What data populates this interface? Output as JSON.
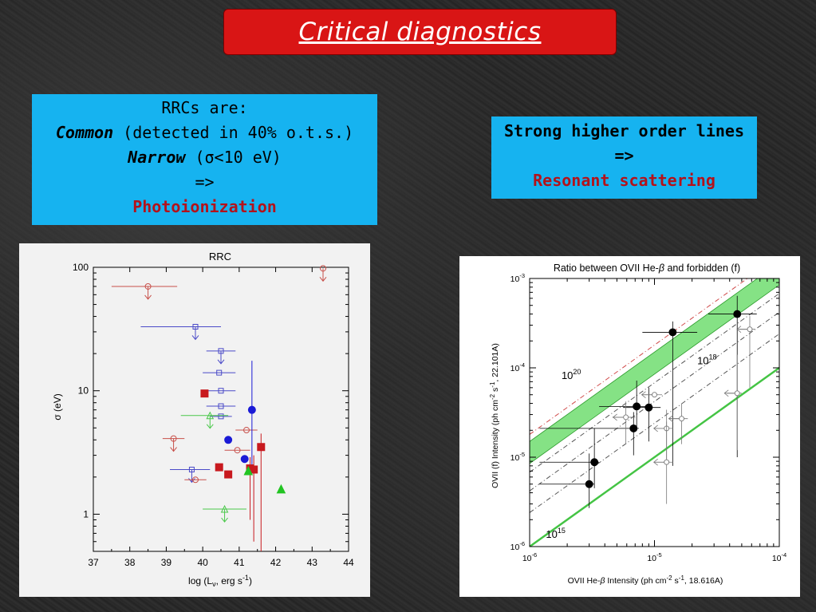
{
  "title": "Critical diagnostics",
  "rrc_box": {
    "line1": "RRCs are:",
    "line2_em": "Common",
    "line2_rest": " (detected in 40% o.t.s.)",
    "line3_em": "Narrow",
    "line3_rest": " (σ<10 eV)",
    "line4": "=>",
    "line5": "Photoionization"
  },
  "res_box": {
    "line1": "Strong higher order lines",
    "line2": "=>",
    "line3": "Resonant scattering"
  },
  "chart_data": [
    {
      "type": "scatter",
      "title": "RRC",
      "xlabel": "log (L",
      "xlabel_sub": "ν",
      "xlabel_tail": ", erg s",
      "xlabel_sup": "-1",
      "xlabel_end": ")",
      "ylabel": "σ (eV)",
      "xlim": [
        37,
        44
      ],
      "ylim": [
        0.5,
        100
      ],
      "ylog": true,
      "xticks": [
        "37",
        "38",
        "39",
        "40",
        "41",
        "42",
        "43",
        "44"
      ],
      "yticks": [
        {
          "v": 1,
          "label": "1"
        },
        {
          "v": 10,
          "label": "10"
        },
        {
          "v": 100,
          "label": "100"
        }
      ],
      "colors": {
        "red": "#c8191e",
        "blue": "#1a1ad6",
        "green": "#22c422",
        "redOpen": "#c8504a",
        "blueOpen": "#4a4ac8",
        "greenOpen": "#4ac84a"
      },
      "points": [
        {
          "x": 38.5,
          "y": 70,
          "xerr": [
            37.5,
            39.3
          ],
          "mk": "circle",
          "fill": false,
          "c": "redOpen",
          "ul": true
        },
        {
          "x": 43.3,
          "y": 98,
          "mk": "circle",
          "fill": false,
          "c": "redOpen",
          "ul": true
        },
        {
          "x": 39.8,
          "y": 33,
          "xerr": [
            38.3,
            40.5
          ],
          "mk": "square",
          "fill": false,
          "c": "blueOpen",
          "ul": true
        },
        {
          "x": 40.5,
          "y": 21,
          "xerr": [
            40.1,
            40.9
          ],
          "mk": "square",
          "fill": false,
          "c": "blueOpen",
          "ul": true
        },
        {
          "x": 40.45,
          "y": 14,
          "xerr": [
            40.0,
            40.9
          ],
          "mk": "square",
          "fill": false,
          "c": "blueOpen"
        },
        {
          "x": 40.5,
          "y": 10,
          "xerr": [
            40.1,
            40.9
          ],
          "mk": "square",
          "fill": false,
          "c": "blueOpen"
        },
        {
          "x": 40.5,
          "y": 7.5,
          "xerr": [
            40.1,
            40.9
          ],
          "mk": "square",
          "fill": false,
          "c": "blueOpen"
        },
        {
          "x": 40.5,
          "y": 6.2,
          "xerr": [
            40.2,
            40.8
          ],
          "mk": "square",
          "fill": false,
          "c": "blueOpen"
        },
        {
          "x": 39.7,
          "y": 2.3,
          "xerr": [
            39.1,
            40.2
          ],
          "mk": "square",
          "fill": false,
          "c": "blueOpen",
          "ul": true
        },
        {
          "x": 40.05,
          "y": 9.5,
          "mk": "square",
          "fill": true,
          "c": "red"
        },
        {
          "x": 40.2,
          "y": 6.3,
          "xerr": [
            39.4,
            40.7
          ],
          "mk": "triangle",
          "fill": false,
          "c": "greenOpen",
          "ul": true
        },
        {
          "x": 39.2,
          "y": 4.1,
          "xerr": [
            38.9,
            39.5
          ],
          "mk": "circle",
          "fill": false,
          "c": "redOpen",
          "ul": true
        },
        {
          "x": 39.8,
          "y": 1.9,
          "xerr": [
            39.5,
            40.1
          ],
          "mk": "circle",
          "fill": false,
          "c": "redOpen"
        },
        {
          "x": 41.2,
          "y": 4.8,
          "xerr": [
            40.9,
            41.5
          ],
          "mk": "circle",
          "fill": false,
          "c": "redOpen"
        },
        {
          "x": 40.95,
          "y": 3.3,
          "xerr": [
            40.6,
            41.3
          ],
          "mk": "circle",
          "fill": false,
          "c": "redOpen"
        },
        {
          "x": 40.7,
          "y": 4.0,
          "mk": "circle",
          "fill": true,
          "c": "blue"
        },
        {
          "x": 41.35,
          "y": 7.0,
          "yerr": [
            2.3,
            17.5
          ],
          "mk": "circle",
          "fill": true,
          "c": "blue"
        },
        {
          "x": 41.15,
          "y": 2.8,
          "mk": "circle",
          "fill": true,
          "c": "blue"
        },
        {
          "x": 40.45,
          "y": 2.4,
          "mk": "square",
          "fill": true,
          "c": "red"
        },
        {
          "x": 40.7,
          "y": 2.1,
          "mk": "square",
          "fill": true,
          "c": "red"
        },
        {
          "x": 41.3,
          "y": 2.35,
          "yerr": [
            0.9,
            2.9
          ],
          "mk": "square",
          "fill": true,
          "c": "red"
        },
        {
          "x": 41.4,
          "y": 2.3,
          "yerr": [
            0.6,
            3.0
          ],
          "mk": "square",
          "fill": true,
          "c": "red"
        },
        {
          "x": 41.6,
          "y": 3.5,
          "yerr": [
            0.5,
            4.5
          ],
          "mk": "square",
          "fill": true,
          "c": "red"
        },
        {
          "x": 41.25,
          "y": 2.25,
          "mk": "triangle",
          "fill": true,
          "c": "green"
        },
        {
          "x": 42.15,
          "y": 1.6,
          "mk": "triangle",
          "fill": true,
          "c": "green"
        },
        {
          "x": 40.6,
          "y": 1.1,
          "xerr": [
            40.0,
            41.2
          ],
          "mk": "triangle",
          "fill": false,
          "c": "greenOpen",
          "ul": true
        }
      ]
    },
    {
      "type": "scatter",
      "title_pre": "Ratio between OVII He-",
      "title_beta": "β",
      "title_post": " and forbidden (f)",
      "xlabel_pre": "OVII He-",
      "xlabel_beta": "β",
      "xlabel_mid": " Intensity (ph cm",
      "xlabel_sup1": "-2",
      "xlabel_s": " s",
      "xlabel_sup2": "-1",
      "xlabel_end": ", 18.616A)",
      "ylabel_pre": "OVII (f) Intensity (ph cm",
      "ylabel_sup1": "-2",
      "ylabel_s": " s",
      "ylabel_sup2": "-1",
      "ylabel_end": ", 22.101A)",
      "xlog": true,
      "ylog": true,
      "xlim": [
        1e-06,
        0.0001
      ],
      "ylim": [
        1e-06,
        0.001
      ],
      "xticks": [
        {
          "base": "10",
          "exp": "-6",
          "v": 1e-06
        },
        {
          "base": "10",
          "exp": "-5",
          "v": 1e-05
        },
        {
          "base": "10",
          "exp": "-4",
          "v": 0.0001
        }
      ],
      "yticks": [
        {
          "base": "10",
          "exp": "-6",
          "v": 1e-06
        },
        {
          "base": "10",
          "exp": "-5",
          "v": 1e-05
        },
        {
          "base": "10",
          "exp": "-4",
          "v": 0.0001
        },
        {
          "base": "10",
          "exp": "-3",
          "v": 0.001
        }
      ],
      "annotations": [
        {
          "base": "10",
          "exp": "20",
          "x": 1.8e-06,
          "y": 7.5e-05
        },
        {
          "base": "10",
          "exp": "18",
          "x": 2.2e-05,
          "y": 0.00011
        },
        {
          "base": "10",
          "exp": "15",
          "x": 1.35e-06,
          "y": 1.25e-06
        }
      ],
      "band": {
        "ratio_lo": 8.5,
        "ratio_hi": 15,
        "color": "#5cd85c"
      },
      "lines": [
        {
          "ratio": 18,
          "style": "dashdot",
          "color": "#d04a4a"
        },
        {
          "ratio": 6.8,
          "style": "dashdot",
          "color": "#555555"
        },
        {
          "ratio": 4.2,
          "style": "dashdot",
          "color": "#555555"
        },
        {
          "ratio": 2.4,
          "style": "dashdot",
          "color": "#555555"
        },
        {
          "ratio": 1.0,
          "style": "solid",
          "color": "#44c444",
          "width": 2.5
        }
      ],
      "points": [
        {
          "x": 3e-06,
          "y": 5e-06,
          "xerr": [
            1.2e-06,
            3.3e-06
          ],
          "yerr": [
            2.7e-06,
            1.1e-05
          ],
          "fill": true
        },
        {
          "x": 3.3e-06,
          "y": 8.8e-06,
          "xerr": [
            1.2e-06,
            3.6e-06
          ],
          "yerr": [
            4.5e-06,
            2.1e-05
          ],
          "fill": true
        },
        {
          "x": 6.8e-06,
          "y": 2.1e-05,
          "xerr": [
            1.2e-06,
            7.5e-06
          ],
          "yerr": [
            1.05e-05,
            3.2e-05
          ],
          "fill": true
        },
        {
          "x": 7.2e-06,
          "y": 3.7e-05,
          "xerr": [
            3.6e-06,
            9.6e-06
          ],
          "yerr": [
            2.2e-05,
            7.2e-05
          ],
          "fill": true
        },
        {
          "x": 9e-06,
          "y": 3.6e-05,
          "xerr": [
            5.6e-06,
            1.12e-05
          ],
          "yerr": [
            1.5e-05,
            6e-05
          ],
          "fill": true
        },
        {
          "x": 1.4e-05,
          "y": 0.00025,
          "xerr": [
            8e-06,
            2.2e-05
          ],
          "yerr": [
            8e-06,
            0.00033
          ],
          "fill": true
        },
        {
          "x": 4.6e-05,
          "y": 0.0004,
          "xerr": [
            2.7e-05,
            6.6e-05
          ],
          "yerr": [
            1e-05,
            0.00064
          ],
          "fill": true
        },
        {
          "x": 5.9e-06,
          "y": 2.8e-05,
          "xerr": [
            4.6e-06,
            7e-06
          ],
          "yerr": [
            1.4e-05,
            4.2e-05
          ],
          "fill": false,
          "ul": true
        },
        {
          "x": 1e-05,
          "y": 5e-05,
          "xerr": [
            8e-06,
            1.15e-05
          ],
          "fill": false,
          "ul": true
        },
        {
          "x": 1.65e-05,
          "y": 2.7e-05,
          "xerr": [
            1.3e-05,
            1.85e-05
          ],
          "yerr": [
            1.4e-05,
            4e-05
          ],
          "fill": false,
          "ul": true
        },
        {
          "x": 1.25e-05,
          "y": 2.1e-05,
          "xerr": [
            1e-05,
            1.4e-05
          ],
          "yerr": [
            9e-06,
            3.4e-05
          ],
          "fill": false,
          "ul": true
        },
        {
          "x": 1.25e-05,
          "y": 8.8e-06,
          "xerr": [
            1e-05,
            1.4e-05
          ],
          "yerr": [
            3e-06,
            2.5e-05
          ],
          "fill": false,
          "ul": true
        },
        {
          "x": 4.6e-05,
          "y": 5.2e-05,
          "xerr": [
            3.8e-05,
            5e-05
          ],
          "yerr": [
            1.2e-05,
            0.00014
          ],
          "fill": false,
          "ul": true
        },
        {
          "x": 5.8e-05,
          "y": 0.00027,
          "xerr": [
            4.8e-05,
            6.4e-05
          ],
          "yerr": [
            6e-05,
            0.00038
          ],
          "fill": false,
          "ul": true
        }
      ]
    }
  ]
}
